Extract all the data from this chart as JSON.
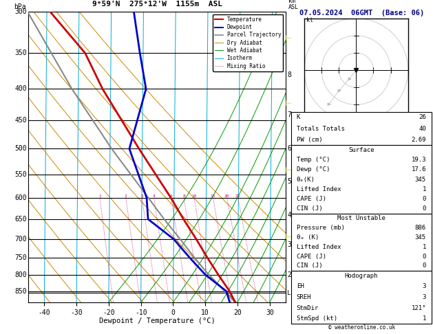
{
  "title_left": "9°59'N  275°12'W  1155m  ASL",
  "title_right": "07.05.2024  06GMT  (Base: 06)",
  "xlabel": "Dewpoint / Temperature (°C)",
  "pressure_levels": [
    300,
    350,
    400,
    450,
    500,
    550,
    600,
    650,
    700,
    750,
    800,
    850
  ],
  "p_min": 300,
  "p_max": 886,
  "t_min": -45,
  "t_max": 35,
  "skew_factor": 0.75,
  "temp_profile": {
    "pressure": [
      886,
      850,
      800,
      750,
      700,
      650,
      600,
      500,
      400,
      350,
      300
    ],
    "temperature": [
      19.3,
      17.5,
      14.0,
      10.5,
      7.0,
      3.0,
      -1.0,
      -11.0,
      -22.5,
      -28.0,
      -39.0
    ]
  },
  "dewp_profile": {
    "pressure": [
      886,
      850,
      800,
      750,
      700,
      650,
      600,
      500,
      400,
      350,
      300
    ],
    "dewpoint": [
      17.6,
      16.5,
      10.0,
      5.0,
      0.0,
      -8.0,
      -8.5,
      -14.0,
      -9.0,
      -11.0,
      -13.0
    ]
  },
  "parcel_profile": {
    "pressure": [
      886,
      850,
      800,
      750,
      700,
      650,
      600,
      500,
      400,
      350,
      300
    ],
    "temperature": [
      19.3,
      16.0,
      11.0,
      6.5,
      2.0,
      -3.0,
      -8.0,
      -19.5,
      -32.0,
      -38.5,
      -46.0
    ]
  },
  "dry_adiabat_tsfc": [
    -40,
    -30,
    -20,
    -10,
    0,
    10,
    20,
    30,
    40,
    50,
    60,
    70
  ],
  "wet_adiabat_tsfc": [
    -20,
    -10,
    0,
    5,
    10,
    15,
    20,
    25,
    30,
    35
  ],
  "isotherms": [
    -40,
    -30,
    -20,
    -10,
    0,
    10,
    20,
    30
  ],
  "mixing_ratios": [
    1,
    2,
    3,
    4,
    6,
    8,
    10,
    15,
    20,
    25
  ],
  "km_pressures": {
    "8": 380,
    "7": 440,
    "6": 500,
    "5": 565,
    "4": 640,
    "3": 715,
    "2": 800
  },
  "lcl_pressure": 856,
  "info_panel": {
    "K": 26,
    "Totals_Totals": 40,
    "PW_cm": "2.69",
    "Surface": {
      "Temp_C": "19.3",
      "Dewp_C": "17.6",
      "theta_e_K": 345,
      "Lifted_Index": 1,
      "CAPE_J": 0,
      "CIN_J": 0
    },
    "Most_Unstable": {
      "Pressure_mb": 886,
      "theta_e_K": 345,
      "Lifted_Index": 1,
      "CAPE_J": 0,
      "CIN_J": 0
    },
    "Hodograph": {
      "EH": 3,
      "SREH": 3,
      "StmDir": "121°",
      "StmSpd_kt": 1
    }
  },
  "bg_color": "#ffffff",
  "temp_color": "#cc0000",
  "dewp_color": "#0000cc",
  "parcel_color": "#888888",
  "isotherm_color": "#00aadd",
  "dry_adiabat_color": "#cc8800",
  "wet_adiabat_color": "#009900",
  "mixing_ratio_color": "#cc0066",
  "legend_items": [
    {
      "label": "Temperature",
      "color": "#cc0000",
      "lw": 1.5,
      "ls": "solid"
    },
    {
      "label": "Dewpoint",
      "color": "#0000cc",
      "lw": 1.5,
      "ls": "solid"
    },
    {
      "label": "Parcel Trajectory",
      "color": "#888888",
      "lw": 1.2,
      "ls": "solid"
    },
    {
      "label": "Dry Adiabat",
      "color": "#cc8800",
      "lw": 0.7,
      "ls": "solid"
    },
    {
      "label": "Wet Adiabat",
      "color": "#009900",
      "lw": 0.7,
      "ls": "solid"
    },
    {
      "label": "Isotherm",
      "color": "#00aadd",
      "lw": 0.7,
      "ls": "solid"
    },
    {
      "label": "Mixing Ratio",
      "color": "#cc0066",
      "lw": 0.6,
      "ls": "dotted"
    }
  ]
}
